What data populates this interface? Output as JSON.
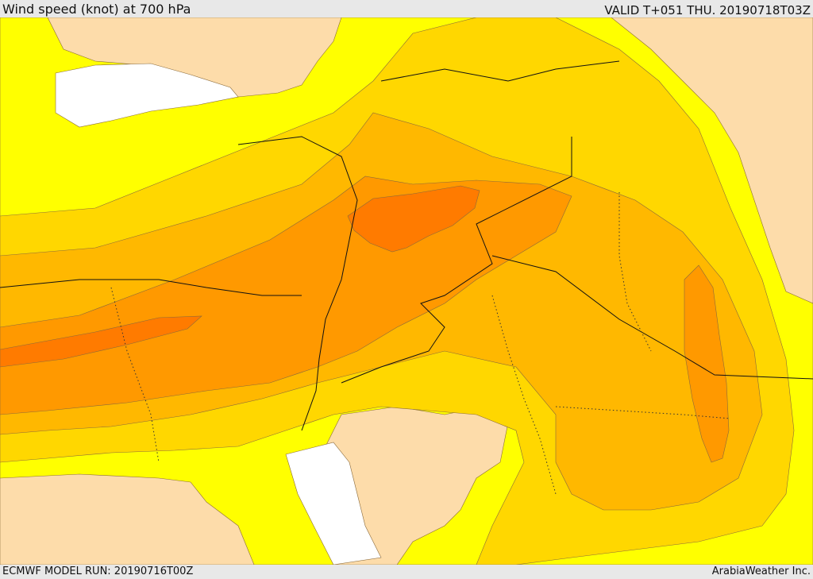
{
  "header": {
    "title": "Wind speed (knot) at 700 hPa",
    "valid": "VALID T+051 THU. 20190718T03Z"
  },
  "footer": {
    "run": "ECMWF MODEL RUN: 20190716T00Z",
    "credit": "ArabiaWeather Inc."
  },
  "map": {
    "field": "wind speed at 700 hPa",
    "colors": {
      "level_0": "#fddcaa",
      "level_1": "#ffff00",
      "level_2": "#ffd700",
      "level_3": "#ffb800",
      "level_4": "#ff9900",
      "level_5": "#ff7b00",
      "sea_blank": "#ffffff"
    }
  }
}
